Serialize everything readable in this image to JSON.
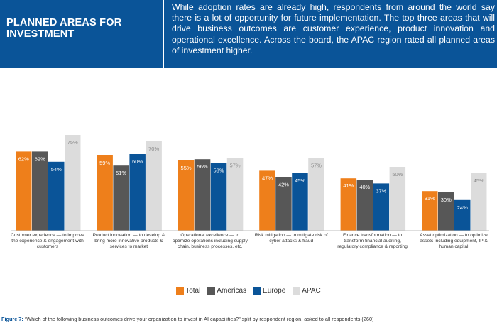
{
  "header": {
    "title": "PLANNED AREAS FOR INVESTMENT",
    "text": "While adoption rates are already high, respondents from around the world say there is a lot of opportunity for future implementation. The top three areas that will drive business outcomes are customer experience, product innovation and operational excellence. Across the board, the APAC region rated all planned areas of investment higher."
  },
  "chart_data": {
    "type": "bar",
    "title": "",
    "xlabel": "",
    "ylabel": "",
    "ylim": [
      0,
      80
    ],
    "grid": false,
    "legend_position": "bottom",
    "categories": [
      "Customer experience — to improve the experience & engagement with customers",
      "Product innovation — to develop & bring more innovative products & services to market",
      "Operational excellence — to optimize operations including supply chain, business processes, etc.",
      "Risk mitigation — to mitigate risk of cyber attacks & fraud",
      "Finance transformation — to transform financial auditing, regulatory compliance & reporting",
      "Asset optimization — to optimize assets including equipment, IP & human capital"
    ],
    "series": [
      {
        "name": "Total",
        "color": "#ee7f1b",
        "values": [
          62,
          59,
          55,
          47,
          41,
          31
        ]
      },
      {
        "name": "Americas",
        "color": "#575757",
        "values": [
          62,
          51,
          56,
          42,
          40,
          30
        ]
      },
      {
        "name": "Europe",
        "color": "#0a5498",
        "values": [
          54,
          60,
          53,
          45,
          37,
          24
        ]
      },
      {
        "name": "APAC",
        "color": "#dcdcdc",
        "values": [
          75,
          70,
          57,
          57,
          50,
          45
        ]
      }
    ],
    "value_label_suffix": "%"
  },
  "caption": {
    "prefix": "Figure 7:",
    "text": "“Which of the following business outcomes drive your organization to invest in AI capabilities?” split by respondent region, asked to all respondents (260)"
  }
}
